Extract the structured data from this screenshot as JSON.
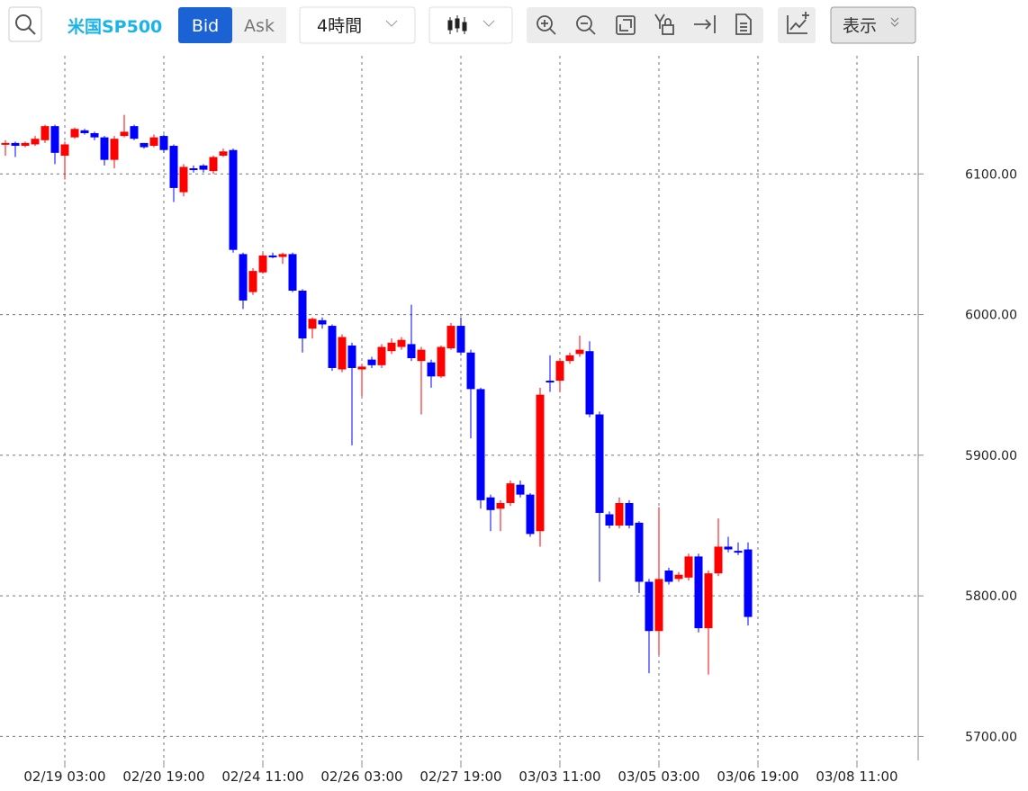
{
  "toolbar": {
    "symbol": "米国SP500",
    "bid": "Bid",
    "ask": "Ask",
    "interval": "4時間",
    "display": "表示"
  },
  "chart_data": {
    "type": "candlestick",
    "categories": [
      null,
      null,
      null,
      null,
      null,
      null,
      "02/19 03:00",
      null,
      null,
      null,
      null,
      null,
      null,
      null,
      null,
      null,
      "02/20 19:00",
      null,
      null,
      null,
      null,
      null,
      null,
      null,
      null,
      null,
      "02/24 11:00",
      null,
      null,
      null,
      null,
      null,
      null,
      null,
      null,
      null,
      "02/26 03:00",
      null,
      null,
      null,
      null,
      null,
      null,
      null,
      null,
      null,
      "02/27 19:00",
      null,
      null,
      null,
      null,
      null,
      null,
      null,
      null,
      null,
      "03/03 11:00",
      null,
      null,
      null,
      null,
      null,
      null,
      null,
      null,
      null,
      "03/05 03:00",
      null,
      null,
      null,
      null,
      null,
      null,
      null,
      null,
      null,
      "03/06 19:00",
      null,
      null,
      null,
      null,
      null,
      null,
      null,
      null,
      null,
      "03/08 11:00",
      null,
      null,
      null,
      null,
      null
    ],
    "open": [
      6121,
      6122,
      6120,
      6121,
      6124,
      6134,
      6113,
      6126,
      6131,
      6129,
      6126,
      6110,
      6127,
      6134,
      6122,
      6120,
      6127,
      6120,
      6087,
      6104,
      6106,
      6102,
      6113,
      6117,
      6043,
      6016,
      6030,
      6042,
      6041,
      6043,
      6017,
      5990,
      5996,
      5992,
      5961,
      5978,
      5961,
      5968,
      5964,
      5974,
      5977,
      5979,
      5967,
      5966,
      5956,
      5976,
      5992,
      5973,
      5947,
      5870,
      5862,
      5866,
      5879,
      5872,
      5846,
      5953,
      5953,
      5967,
      5972,
      5974,
      5929,
      5858,
      5850,
      5866,
      5852,
      5810,
      5775,
      5818,
      5812,
      5813,
      5828,
      5777,
      5816,
      5835,
      5832,
      5833,
      null,
      null,
      null,
      null,
      null,
      null,
      null,
      null,
      null,
      null,
      null,
      null,
      null,
      null,
      null,
      null
    ],
    "high": [
      6124,
      6123,
      6123,
      6127,
      6135,
      6135,
      6123,
      6133,
      6132,
      6130,
      6127,
      6127,
      6142,
      6135,
      6121,
      6128,
      6128,
      6121,
      6107,
      6106,
      6107,
      6113,
      6118,
      6118,
      6044,
      6033,
      6044,
      6044,
      6044,
      6044,
      6018,
      5998,
      5998,
      5993,
      5986,
      5980,
      5965,
      5970,
      5979,
      5983,
      5984,
      6007,
      5977,
      5968,
      5978,
      5994,
      5998,
      5975,
      5948,
      5872,
      5868,
      5882,
      5882,
      5873,
      5948,
      5971,
      5969,
      5973,
      5985,
      5981,
      5931,
      5860,
      5870,
      5868,
      5853,
      5812,
      5863,
      5820,
      5817,
      5830,
      5830,
      5818,
      5855,
      5842,
      5838,
      5838,
      null,
      null,
      null,
      null,
      null,
      null,
      null,
      null,
      null,
      null,
      null,
      null,
      null,
      null,
      null,
      null
    ],
    "low": [
      6113,
      6112,
      6119,
      6120,
      6122,
      6107,
      6096,
      6125,
      6128,
      6124,
      6106,
      6104,
      6126,
      6124,
      6118,
      6119,
      6115,
      6080,
      6084,
      6101,
      6101,
      6100,
      6112,
      6044,
      6004,
      6014,
      6029,
      6040,
      6036,
      6016,
      5973,
      5983,
      5990,
      5960,
      5959,
      5907,
      5942,
      5962,
      5962,
      5972,
      5975,
      5967,
      5929,
      5948,
      5955,
      5975,
      5971,
      5912,
      5862,
      5846,
      5846,
      5864,
      5870,
      5842,
      5835,
      5945,
      5945,
      5965,
      5970,
      5927,
      5810,
      5848,
      5848,
      5848,
      5802,
      5745,
      5758,
      5808,
      5810,
      5811,
      5774,
      5744,
      5814,
      5831,
      5829,
      5779,
      null,
      null,
      null,
      null,
      null,
      null,
      null,
      null,
      null,
      null,
      null,
      null,
      null,
      null,
      null,
      null
    ],
    "close": [
      6122,
      6120,
      6122,
      6125,
      6134,
      6115,
      6121,
      6132,
      6129,
      6126,
      6110,
      6125,
      6130,
      6125,
      6119,
      6126,
      6117,
      6090,
      6105,
      6103,
      6103,
      6112,
      6116,
      6046,
      6010,
      6031,
      6042,
      6041,
      6043,
      6017,
      5983,
      5997,
      5993,
      5962,
      5984,
      5962,
      5963,
      5964,
      5977,
      5980,
      5982,
      5969,
      5975,
      5956,
      5977,
      5992,
      5973,
      5947,
      5868,
      5861,
      5866,
      5880,
      5872,
      5844,
      5943,
      5952,
      5967,
      5971,
      5975,
      5929,
      5859,
      5850,
      5866,
      5850,
      5810,
      5775,
      5812,
      5810,
      5815,
      5828,
      5777,
      5816,
      5835,
      5833,
      5831,
      5785,
      null,
      null,
      null,
      null,
      null,
      null,
      null,
      null,
      null,
      null,
      null,
      null,
      null,
      null,
      null,
      null
    ],
    "up_color": "#ff0000",
    "down_color": "#0000ff",
    "ylim": [
      5683,
      6184
    ],
    "yticks": [
      {
        "value": 5700,
        "label": "5700.00"
      },
      {
        "value": 5800,
        "label": "5800.00"
      },
      {
        "value": 5900,
        "label": "5900.00"
      },
      {
        "value": 6000,
        "label": "6000.00"
      },
      {
        "value": 6100,
        "label": "6100.00"
      }
    ],
    "grid": true
  }
}
